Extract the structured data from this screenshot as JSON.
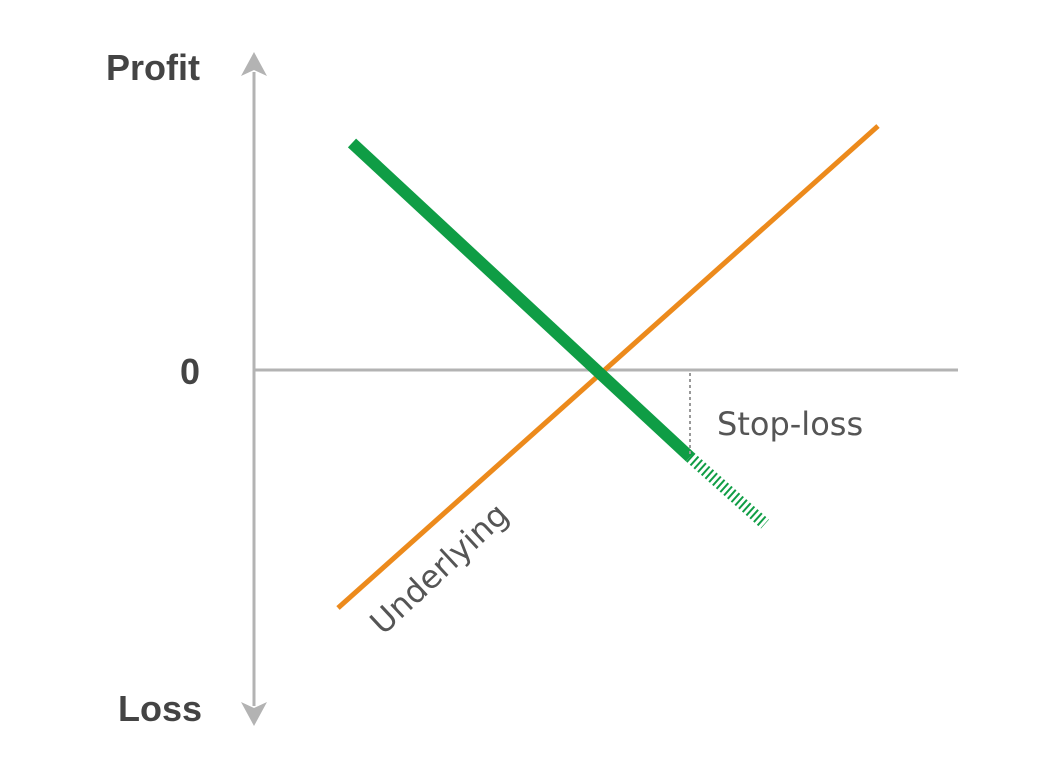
{
  "labels": {
    "profit": "Profit",
    "zero": "0",
    "loss": "Loss",
    "stop_loss": "Stop-loss",
    "underlying": "Underlying"
  },
  "colors": {
    "axis": "#b3b3b3",
    "underlying": "#ec8a1c",
    "position": "#0f9d45",
    "guide": "#999999",
    "text_bold": "#444444",
    "text_thin": "#555555"
  }
}
